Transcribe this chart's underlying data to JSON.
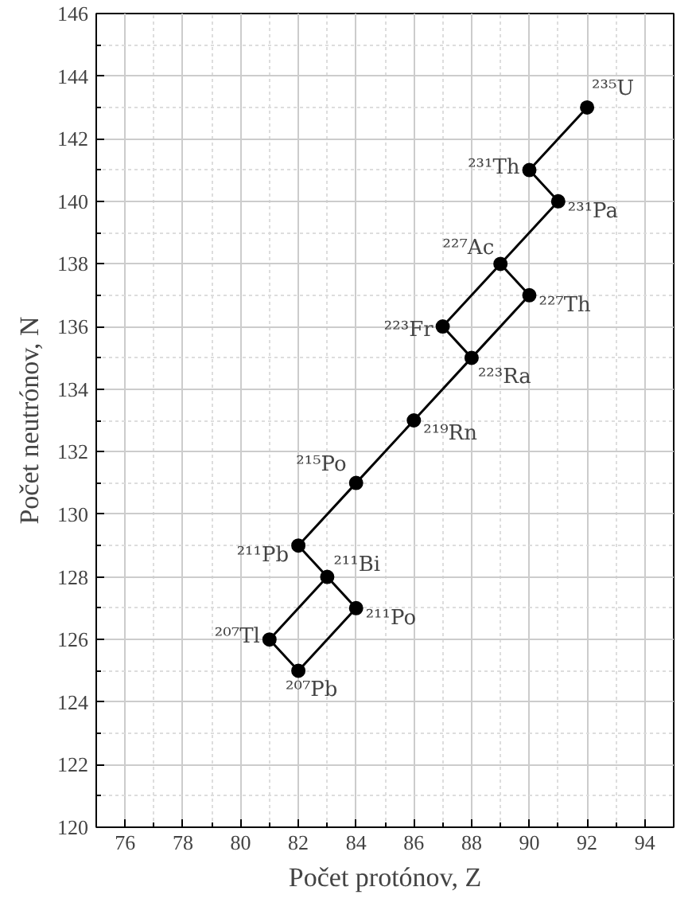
{
  "chart_data": {
    "type": "scatter",
    "xlabel": "Počet protónov, Z",
    "ylabel": "Počet neutrónov, N",
    "xlim": [
      75,
      95
    ],
    "xticks": [
      76,
      78,
      80,
      82,
      84,
      86,
      88,
      90,
      92,
      94
    ],
    "ylim": [
      120,
      146
    ],
    "yticks": [
      120,
      122,
      124,
      126,
      128,
      130,
      132,
      134,
      136,
      138,
      140,
      142,
      144,
      146
    ],
    "grid": true,
    "series": [
      {
        "type": "line",
        "color": "#000000",
        "marker": "none",
        "x": [
          92,
          90,
          91,
          89,
          90,
          88,
          87,
          89
        ],
        "values": [
          143,
          141,
          140,
          138,
          137,
          135,
          136,
          138
        ]
      },
      {
        "type": "line",
        "color": "#000000",
        "marker": "none",
        "x": [
          88,
          86,
          84,
          82,
          83,
          84,
          82,
          81,
          83
        ],
        "values": [
          135,
          133,
          131,
          129,
          128,
          127,
          125,
          126,
          128
        ]
      },
      {
        "color": "#000000",
        "marker": "circle",
        "x": [
          92,
          90,
          91,
          89,
          90,
          87,
          88,
          86,
          84,
          82,
          83,
          84,
          81,
          82
        ],
        "values": [
          143,
          141,
          140,
          138,
          137,
          136,
          135,
          133,
          131,
          129,
          128,
          127,
          126,
          125
        ]
      }
    ],
    "annotations": [
      {
        "text": "²³⁵U",
        "x": 92,
        "y": 143
      },
      {
        "text": "²³¹Th",
        "x": 90,
        "y": 141
      },
      {
        "text": "²³¹Pa",
        "x": 91,
        "y": 140
      },
      {
        "text": "²²⁷Ac",
        "x": 89,
        "y": 138
      },
      {
        "text": "²²⁷Th",
        "x": 90,
        "y": 137
      },
      {
        "text": "²²³Fr",
        "x": 87,
        "y": 136
      },
      {
        "text": "²²³Ra",
        "x": 88,
        "y": 135
      },
      {
        "text": "²¹⁹Rn",
        "x": 86,
        "y": 133
      },
      {
        "text": "²¹⁵Po",
        "x": 84,
        "y": 131
      },
      {
        "text": "²¹¹Pb",
        "x": 82,
        "y": 129
      },
      {
        "text": "²¹¹Bi",
        "x": 83,
        "y": 128
      },
      {
        "text": "²¹¹Po",
        "x": 84,
        "y": 127
      },
      {
        "text": "²⁰⁷Tl",
        "x": 81,
        "y": 126
      },
      {
        "text": "²⁰⁷Pb",
        "x": 82,
        "y": 125
      }
    ]
  }
}
